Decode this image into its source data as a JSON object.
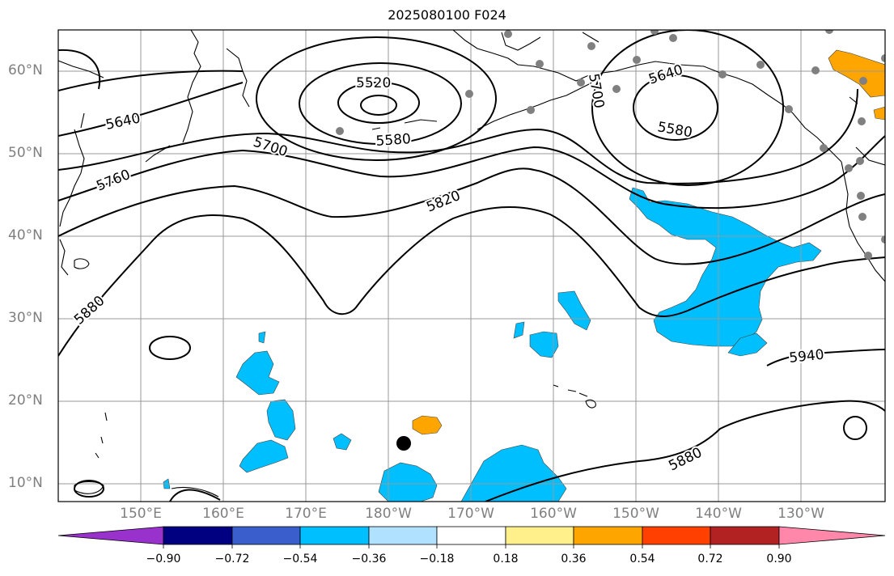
{
  "title": "2025080100 F024",
  "map": {
    "lat_labels": [
      "60°N",
      "50°N",
      "40°N",
      "30°N",
      "20°N",
      "10°N"
    ],
    "lon_labels": [
      "150°E",
      "160°E",
      "170°E",
      "180°W",
      "170°W",
      "160°W",
      "150°W",
      "140°W",
      "130°W"
    ],
    "contour_labels": [
      "5520",
      "5580",
      "5640",
      "5700",
      "5760",
      "5820",
      "5880",
      "5580",
      "5640",
      "5700",
      "5940",
      "5880"
    ],
    "colors": {
      "contour": "#000000",
      "coast": "#000000",
      "grid": "#999999",
      "station": "#808080",
      "negative_fill": "#00bfff",
      "positive_fill": "#ffa500",
      "typhoon_marker": "#000000"
    }
  },
  "colorbar": {
    "tick_labels": [
      "−0.90",
      "−0.72",
      "−0.54",
      "−0.36",
      "−0.18",
      "0.18",
      "0.36",
      "0.54",
      "0.72",
      "0.90"
    ],
    "colors": [
      "#9932cc",
      "#000080",
      "#3a5fcd",
      "#00bfff",
      "#b0e2ff",
      "#ffffff",
      "#fff08c",
      "#ffa500",
      "#ff4000",
      "#b22222",
      "#ff88aa"
    ]
  }
}
